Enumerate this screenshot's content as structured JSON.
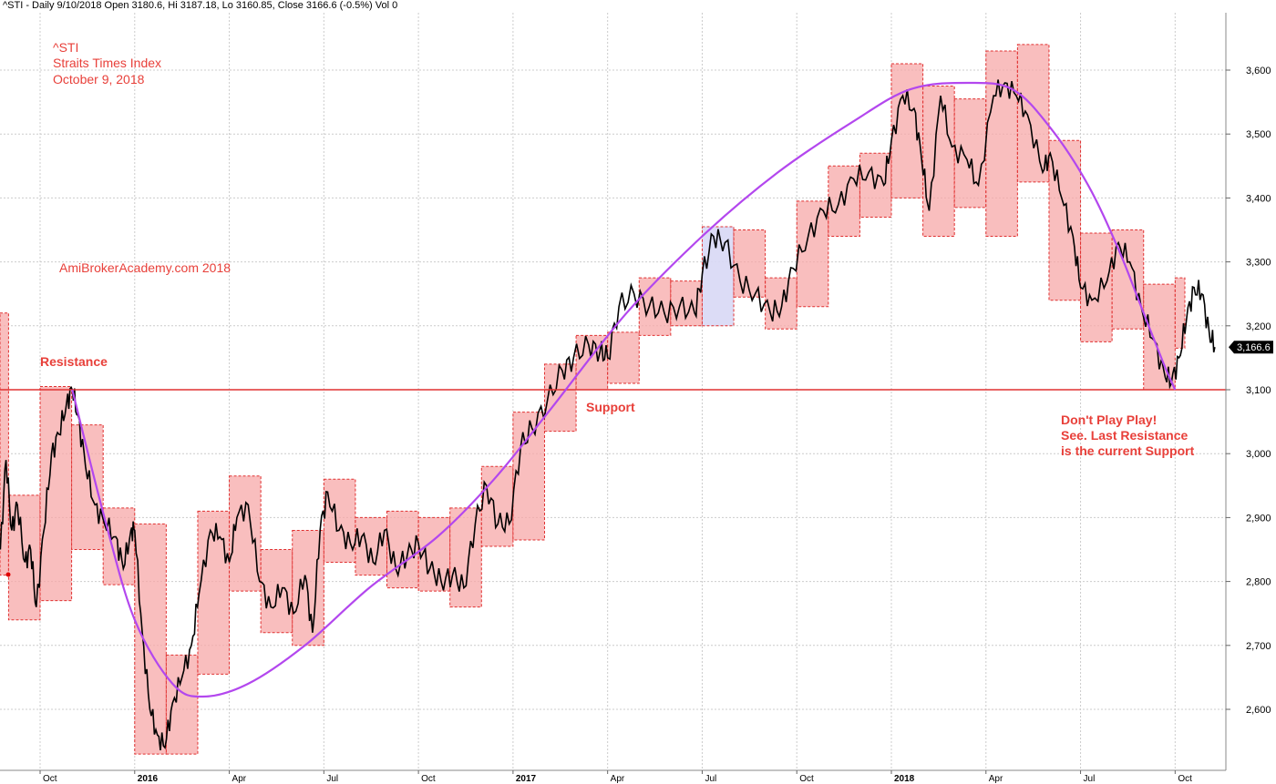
{
  "header": "^STI - Daily 9/10/2018 Open 3180.6, Hi 3187.18, Lo 3160.85, Close 3166.6 (-0.5%) Vol 0",
  "colors": {
    "annotation": "#e8403a",
    "box_fill": "#f7a8a8",
    "box_stroke": "#e03030",
    "highlight_fill": "#d8d8f5",
    "curve": "#b347ee",
    "hline": "#e03030",
    "grid": "#cccccc",
    "price_tag_bg": "#000000",
    "price_tag_text": "#ffffff"
  },
  "annotations": {
    "ticker": "^STI",
    "name": "Straits Times Index",
    "date": "October 9, 2018",
    "watermark": "AmiBrokerAcademy.com  2018",
    "resistance": "Resistance",
    "support": "Support",
    "note_line1": "Don't Play Play!",
    "note_line2": "See. Last Resistance",
    "note_line3": "is the current Support"
  },
  "chart_data": {
    "type": "candlestick",
    "symbol": "^STI",
    "last_close_label": "3,166.6",
    "last_close": 3166.6,
    "horizontal_line": 3100,
    "ylim": [
      2520,
      3660
    ],
    "y_ticks": [
      2600,
      2700,
      2800,
      2900,
      3000,
      3100,
      3200,
      3300,
      3400,
      3500,
      3600
    ],
    "y_tick_labels": [
      "2,600",
      "2,700",
      "2,800",
      "2,900",
      "3,000",
      "3,100",
      "3,200",
      "3,300",
      "3,400",
      "3,500",
      "3,600"
    ],
    "x_ticks": [
      {
        "label": "Oct",
        "t": 2015.75,
        "bold": false
      },
      {
        "label": "2016",
        "t": 2016.0,
        "bold": true
      },
      {
        "label": "Apr",
        "t": 2016.25,
        "bold": false
      },
      {
        "label": "Jul",
        "t": 2016.5,
        "bold": false
      },
      {
        "label": "Oct",
        "t": 2016.75,
        "bold": false
      },
      {
        "label": "2017",
        "t": 2017.0,
        "bold": true
      },
      {
        "label": "Apr",
        "t": 2017.25,
        "bold": false
      },
      {
        "label": "Jul",
        "t": 2017.5,
        "bold": false
      },
      {
        "label": "Oct",
        "t": 2017.75,
        "bold": false
      },
      {
        "label": "2018",
        "t": 2018.0,
        "bold": true
      },
      {
        "label": "Apr",
        "t": 2018.25,
        "bold": false
      },
      {
        "label": "Jul",
        "t": 2018.5,
        "bold": false
      },
      {
        "label": "Oct",
        "t": 2018.75,
        "bold": false
      }
    ],
    "xlim": [
      2015.645,
      2018.9
    ],
    "monthly_ranges": [
      {
        "start": "2015-08",
        "high": 3220,
        "low": 2810
      },
      {
        "start": "2015-09",
        "high": 2935,
        "low": 2740
      },
      {
        "start": "2015-10",
        "high": 3105,
        "low": 2770
      },
      {
        "start": "2015-11",
        "high": 3045,
        "low": 2850
      },
      {
        "start": "2015-12",
        "high": 2915,
        "low": 2795
      },
      {
        "start": "2016-01",
        "high": 2890,
        "low": 2530
      },
      {
        "start": "2016-02",
        "high": 2685,
        "low": 2530
      },
      {
        "start": "2016-03",
        "high": 2910,
        "low": 2655
      },
      {
        "start": "2016-04",
        "high": 2965,
        "low": 2785
      },
      {
        "start": "2016-05",
        "high": 2850,
        "low": 2720
      },
      {
        "start": "2016-06",
        "high": 2880,
        "low": 2700
      },
      {
        "start": "2016-07",
        "high": 2960,
        "low": 2830
      },
      {
        "start": "2016-08",
        "high": 2900,
        "low": 2810
      },
      {
        "start": "2016-09",
        "high": 2910,
        "low": 2790
      },
      {
        "start": "2016-10",
        "high": 2900,
        "low": 2785
      },
      {
        "start": "2016-11",
        "high": 2915,
        "low": 2760
      },
      {
        "start": "2016-12",
        "high": 2980,
        "low": 2855
      },
      {
        "start": "2017-01",
        "high": 3065,
        "low": 2865
      },
      {
        "start": "2017-02",
        "high": 3140,
        "low": 3035
      },
      {
        "start": "2017-03",
        "high": 3185,
        "low": 3100
      },
      {
        "start": "2017-04",
        "high": 3190,
        "low": 3110
      },
      {
        "start": "2017-05",
        "high": 3275,
        "low": 3185
      },
      {
        "start": "2017-06",
        "high": 3270,
        "low": 3200
      },
      {
        "start": "2017-07",
        "high": 3355,
        "low": 3200,
        "highlight": true
      },
      {
        "start": "2017-08",
        "high": 3350,
        "low": 3245
      },
      {
        "start": "2017-09",
        "high": 3275,
        "low": 3195
      },
      {
        "start": "2017-10",
        "high": 3395,
        "low": 3230
      },
      {
        "start": "2017-11",
        "high": 3450,
        "low": 3340
      },
      {
        "start": "2017-12",
        "high": 3470,
        "low": 3370
      },
      {
        "start": "2018-01",
        "high": 3610,
        "low": 3400
      },
      {
        "start": "2018-02",
        "high": 3575,
        "low": 3340
      },
      {
        "start": "2018-03",
        "high": 3555,
        "low": 3385
      },
      {
        "start": "2018-04",
        "high": 3630,
        "low": 3340
      },
      {
        "start": "2018-05",
        "high": 3640,
        "low": 3425
      },
      {
        "start": "2018-06",
        "high": 3490,
        "low": 3240
      },
      {
        "start": "2018-07",
        "high": 3345,
        "low": 3175
      },
      {
        "start": "2018-08",
        "high": 3350,
        "low": 3195
      },
      {
        "start": "2018-09",
        "high": 3265,
        "low": 3100
      },
      {
        "start": "2018-10",
        "high": 3275,
        "low": 3165
      }
    ],
    "price_path": [
      [
        2015.645,
        2850
      ],
      [
        2015.66,
        2990
      ],
      [
        2015.675,
        2880
      ],
      [
        2015.69,
        2920
      ],
      [
        2015.71,
        2830
      ],
      [
        2015.725,
        2850
      ],
      [
        2015.74,
        2760
      ],
      [
        2015.76,
        2880
      ],
      [
        2015.78,
        3000
      ],
      [
        2015.8,
        3030
      ],
      [
        2015.82,
        3080
      ],
      [
        2015.835,
        3100
      ],
      [
        2015.85,
        3060
      ],
      [
        2015.87,
        2980
      ],
      [
        2015.895,
        2920
      ],
      [
        2015.92,
        2890
      ],
      [
        2015.95,
        2870
      ],
      [
        2015.97,
        2820
      ],
      [
        2015.99,
        2880
      ],
      [
        2016.0,
        2880
      ],
      [
        2016.02,
        2720
      ],
      [
        2016.04,
        2600
      ],
      [
        2016.06,
        2560
      ],
      [
        2016.08,
        2540
      ],
      [
        2016.1,
        2610
      ],
      [
        2016.125,
        2650
      ],
      [
        2016.15,
        2700
      ],
      [
        2016.17,
        2780
      ],
      [
        2016.2,
        2880
      ],
      [
        2016.225,
        2870
      ],
      [
        2016.25,
        2830
      ],
      [
        2016.27,
        2900
      ],
      [
        2016.3,
        2920
      ],
      [
        2016.33,
        2800
      ],
      [
        2016.36,
        2760
      ],
      [
        2016.39,
        2790
      ],
      [
        2016.42,
        2750
      ],
      [
        2016.45,
        2810
      ],
      [
        2016.47,
        2720
      ],
      [
        2016.49,
        2880
      ],
      [
        2016.51,
        2940
      ],
      [
        2016.54,
        2880
      ],
      [
        2016.57,
        2860
      ],
      [
        2016.6,
        2870
      ],
      [
        2016.63,
        2830
      ],
      [
        2016.66,
        2880
      ],
      [
        2016.69,
        2820
      ],
      [
        2016.72,
        2840
      ],
      [
        2016.75,
        2860
      ],
      [
        2016.78,
        2820
      ],
      [
        2016.81,
        2800
      ],
      [
        2016.84,
        2810
      ],
      [
        2016.87,
        2790
      ],
      [
        2016.9,
        2890
      ],
      [
        2016.93,
        2950
      ],
      [
        2016.96,
        2890
      ],
      [
        2016.99,
        2890
      ],
      [
        2017.02,
        3010
      ],
      [
        2017.05,
        3040
      ],
      [
        2017.09,
        3080
      ],
      [
        2017.13,
        3130
      ],
      [
        2017.16,
        3150
      ],
      [
        2017.2,
        3170
      ],
      [
        2017.23,
        3160
      ],
      [
        2017.25,
        3150
      ],
      [
        2017.28,
        3230
      ],
      [
        2017.32,
        3250
      ],
      [
        2017.36,
        3230
      ],
      [
        2017.4,
        3220
      ],
      [
        2017.44,
        3230
      ],
      [
        2017.48,
        3220
      ],
      [
        2017.5,
        3280
      ],
      [
        2017.53,
        3340
      ],
      [
        2017.56,
        3330
      ],
      [
        2017.6,
        3270
      ],
      [
        2017.64,
        3250
      ],
      [
        2017.68,
        3220
      ],
      [
        2017.71,
        3230
      ],
      [
        2017.74,
        3290
      ],
      [
        2017.78,
        3340
      ],
      [
        2017.82,
        3380
      ],
      [
        2017.86,
        3390
      ],
      [
        2017.9,
        3430
      ],
      [
        2017.94,
        3440
      ],
      [
        2017.98,
        3420
      ],
      [
        2018.0,
        3490
      ],
      [
        2018.03,
        3560
      ],
      [
        2018.06,
        3540
      ],
      [
        2018.08,
        3460
      ],
      [
        2018.1,
        3380
      ],
      [
        2018.13,
        3560
      ],
      [
        2018.16,
        3480
      ],
      [
        2018.2,
        3460
      ],
      [
        2018.23,
        3420
      ],
      [
        2018.27,
        3560
      ],
      [
        2018.3,
        3580
      ],
      [
        2018.33,
        3560
      ],
      [
        2018.36,
        3530
      ],
      [
        2018.4,
        3440
      ],
      [
        2018.42,
        3470
      ],
      [
        2018.45,
        3400
      ],
      [
        2018.48,
        3340
      ],
      [
        2018.5,
        3260
      ],
      [
        2018.53,
        3240
      ],
      [
        2018.57,
        3270
      ],
      [
        2018.6,
        3330
      ],
      [
        2018.63,
        3300
      ],
      [
        2018.66,
        3230
      ],
      [
        2018.69,
        3180
      ],
      [
        2018.72,
        3130
      ],
      [
        2018.74,
        3110
      ],
      [
        2018.76,
        3150
      ],
      [
        2018.78,
        3210
      ],
      [
        2018.8,
        3260
      ],
      [
        2018.82,
        3250
      ],
      [
        2018.84,
        3190
      ],
      [
        2018.855,
        3166.6
      ]
    ],
    "trend_curve": {
      "shape": "hand-drawn arc",
      "points": [
        [
          2015.835,
          3100
        ],
        [
          2015.92,
          2900
        ],
        [
          2016.0,
          2740
        ],
        [
          2016.1,
          2640
        ],
        [
          2016.18,
          2620
        ],
        [
          2016.3,
          2640
        ],
        [
          2016.45,
          2700
        ],
        [
          2016.62,
          2790
        ],
        [
          2016.8,
          2870
        ],
        [
          2016.95,
          2960
        ],
        [
          2017.1,
          3070
        ],
        [
          2017.3,
          3220
        ],
        [
          2017.5,
          3340
        ],
        [
          2017.7,
          3440
        ],
        [
          2017.9,
          3520
        ],
        [
          2018.05,
          3570
        ],
        [
          2018.2,
          3580
        ],
        [
          2018.32,
          3570
        ],
        [
          2018.42,
          3510
        ],
        [
          2018.52,
          3420
        ],
        [
          2018.6,
          3320
        ],
        [
          2018.66,
          3230
        ],
        [
          2018.72,
          3140
        ],
        [
          2018.75,
          3100
        ]
      ]
    }
  }
}
